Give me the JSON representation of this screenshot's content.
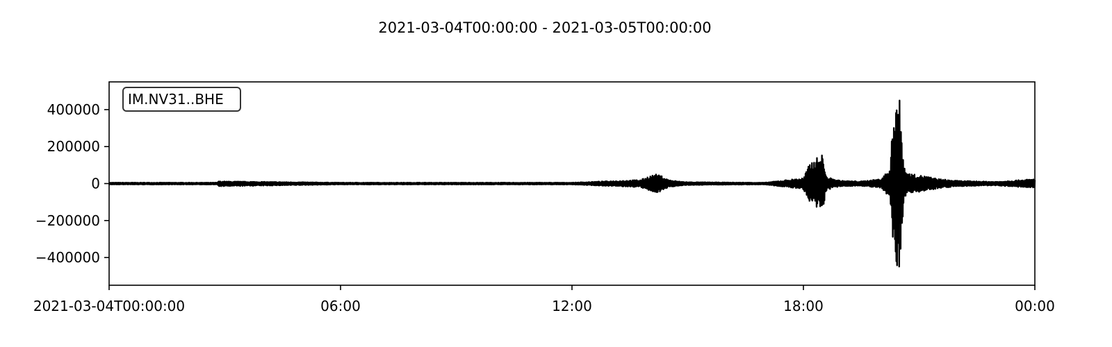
{
  "chart_data": {
    "type": "line",
    "title": "2021-03-04T00:00:00  -  2021-03-05T00:00:00",
    "trace_label": "IM.NV31..BHE",
    "xlabel": "",
    "ylabel": "",
    "x_range": [
      "2021-03-04T00:00:00",
      "2021-03-05T00:00:00"
    ],
    "ylim": [
      -550000,
      550000
    ],
    "x_ticks": [
      {
        "time": "2021-03-04T00:00:00",
        "label": "2021-03-04T00:00:00"
      },
      {
        "time": "2021-03-04T06:00:00",
        "label": "06:00"
      },
      {
        "time": "2021-03-04T12:00:00",
        "label": "12:00"
      },
      {
        "time": "2021-03-04T18:00:00",
        "label": "18:00"
      },
      {
        "time": "2021-03-05T00:00:00",
        "label": "00:00"
      }
    ],
    "y_ticks": [
      {
        "value": 400000,
        "label": "400000"
      },
      {
        "value": 200000,
        "label": "200000"
      },
      {
        "value": 0,
        "label": "0"
      },
      {
        "value": -200000,
        "label": "−200000"
      },
      {
        "value": -400000,
        "label": "−400000"
      }
    ],
    "grid": false,
    "legend": "top-left",
    "line_color": "#000000",
    "series": [
      {
        "x": [
          "2021-03-04T00:00:00",
          "2021-03-04T02:48:00",
          "2021-03-04T02:50:00",
          "2021-03-04T06:00:00",
          "2021-03-04T12:00:00",
          "2021-03-04T13:47:00",
          "2021-03-04T14:00:00",
          "2021-03-04T14:10:00",
          "2021-03-04T14:20:00",
          "2021-03-04T14:30:00",
          "2021-03-04T14:45:00",
          "2021-03-04T15:00:00",
          "2021-03-04T16:00:00",
          "2021-03-04T17:00:00",
          "2021-03-04T18:00:00",
          "2021-03-04T18:10:00",
          "2021-03-04T18:25:00",
          "2021-03-04T18:30:00",
          "2021-03-04T18:35:00",
          "2021-03-04T18:45:00",
          "2021-03-04T19:00:00",
          "2021-03-04T19:30:00",
          "2021-03-04T20:00:00",
          "2021-03-04T20:15:00",
          "2021-03-04T20:20:00",
          "2021-03-04T20:22:00",
          "2021-03-04T20:25:00",
          "2021-03-04T20:30:00",
          "2021-03-04T20:35:00",
          "2021-03-04T20:40:00",
          "2021-03-04T20:50:00",
          "2021-03-04T21:10:00",
          "2021-03-04T21:30:00",
          "2021-03-04T22:00:00",
          "2021-03-04T23:00:00",
          "2021-03-05T00:00:00"
        ],
        "y_max": [
          5000,
          5000,
          12000,
          5000,
          5000,
          20000,
          40000,
          50000,
          40000,
          20000,
          12000,
          8000,
          6000,
          5000,
          30000,
          110000,
          150000,
          160000,
          40000,
          25000,
          15000,
          12000,
          25000,
          80000,
          400000,
          420000,
          500000,
          450000,
          150000,
          60000,
          50000,
          40000,
          25000,
          15000,
          10000,
          25000
        ],
        "y_min": [
          -5000,
          -5000,
          -15000,
          -5000,
          -5000,
          -20000,
          -40000,
          -50000,
          -40000,
          -20000,
          -12000,
          -8000,
          -6000,
          -5000,
          -30000,
          -110000,
          -150000,
          -160000,
          -40000,
          -25000,
          -15000,
          -12000,
          -25000,
          -80000,
          -380000,
          -420000,
          -490000,
          -450000,
          -150000,
          -60000,
          -50000,
          -40000,
          -25000,
          -15000,
          -10000,
          -25000
        ]
      }
    ]
  }
}
